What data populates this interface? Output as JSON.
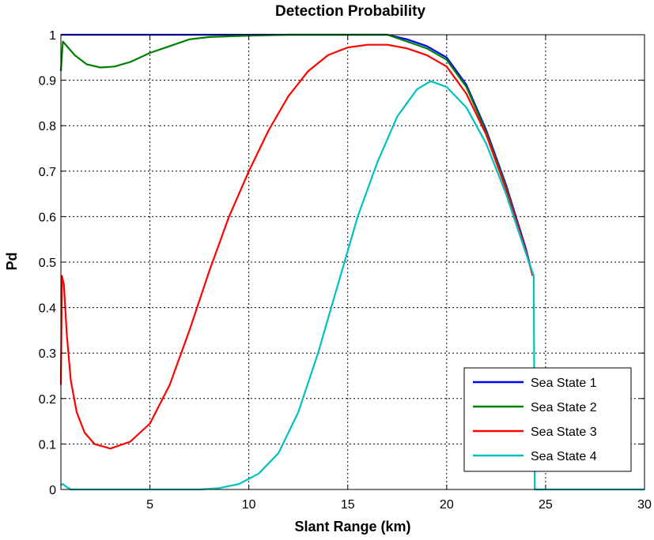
{
  "chart_data": {
    "type": "line",
    "title": "Detection Probability",
    "xlabel": "Slant Range (km)",
    "ylabel": "Pd",
    "xlim": [
      0.5,
      30
    ],
    "ylim": [
      0,
      1
    ],
    "xticks": [
      5,
      10,
      15,
      20,
      25,
      30
    ],
    "yticks": [
      0,
      0.1,
      0.2,
      0.3,
      0.4,
      0.5,
      0.6,
      0.7,
      0.8,
      0.9,
      1
    ],
    "ytick_labels": [
      "0",
      "0.1",
      "0.2",
      "0.3",
      "0.4",
      "0.5",
      "0.6",
      "0.7",
      "0.8",
      "0.9",
      "1"
    ],
    "grid": true,
    "legend_position": "bottom-right",
    "series": [
      {
        "name": "Sea State 1",
        "color": "#0000ff",
        "points": [
          [
            0.5,
            1.0
          ],
          [
            17,
            1.0
          ],
          [
            18,
            0.99
          ],
          [
            19,
            0.975
          ],
          [
            20,
            0.95
          ],
          [
            21,
            0.89
          ],
          [
            22,
            0.79
          ],
          [
            23,
            0.67
          ],
          [
            24,
            0.53
          ],
          [
            24.35,
            0.47
          ]
        ]
      },
      {
        "name": "Sea State 2",
        "color": "#008000",
        "points": [
          [
            0.5,
            0.92
          ],
          [
            0.6,
            0.985
          ],
          [
            0.8,
            0.975
          ],
          [
            1.2,
            0.955
          ],
          [
            1.8,
            0.935
          ],
          [
            2.5,
            0.928
          ],
          [
            3.2,
            0.93
          ],
          [
            4,
            0.94
          ],
          [
            5,
            0.96
          ],
          [
            6,
            0.975
          ],
          [
            7,
            0.99
          ],
          [
            8,
            0.995
          ],
          [
            10,
            0.998
          ],
          [
            12,
            1.0
          ],
          [
            17,
            1.0
          ],
          [
            18,
            0.985
          ],
          [
            19,
            0.97
          ],
          [
            20,
            0.945
          ],
          [
            21,
            0.885
          ],
          [
            22,
            0.785
          ],
          [
            23,
            0.665
          ],
          [
            24,
            0.525
          ],
          [
            24.35,
            0.47
          ]
        ]
      },
      {
        "name": "Sea State 3",
        "color": "#ff0000",
        "points": [
          [
            0.5,
            0.23
          ],
          [
            0.55,
            0.47
          ],
          [
            0.65,
            0.45
          ],
          [
            0.8,
            0.34
          ],
          [
            1.0,
            0.24
          ],
          [
            1.3,
            0.17
          ],
          [
            1.7,
            0.125
          ],
          [
            2.2,
            0.1
          ],
          [
            3,
            0.09
          ],
          [
            4,
            0.105
          ],
          [
            5,
            0.145
          ],
          [
            6,
            0.23
          ],
          [
            7,
            0.35
          ],
          [
            8,
            0.48
          ],
          [
            9,
            0.6
          ],
          [
            10,
            0.7
          ],
          [
            11,
            0.79
          ],
          [
            12,
            0.865
          ],
          [
            13,
            0.92
          ],
          [
            14,
            0.955
          ],
          [
            15,
            0.972
          ],
          [
            16,
            0.978
          ],
          [
            17,
            0.978
          ],
          [
            18,
            0.97
          ],
          [
            19,
            0.955
          ],
          [
            20,
            0.93
          ],
          [
            21,
            0.87
          ],
          [
            22,
            0.78
          ],
          [
            23,
            0.66
          ],
          [
            24,
            0.525
          ],
          [
            24.35,
            0.47
          ]
        ]
      },
      {
        "name": "Sea State 4",
        "color": "#00c0c0",
        "points": [
          [
            0.5,
            0.01
          ],
          [
            0.6,
            0.012
          ],
          [
            0.8,
            0.005
          ],
          [
            1.0,
            0.0
          ],
          [
            7.5,
            0.0
          ],
          [
            8.5,
            0.003
          ],
          [
            9.5,
            0.012
          ],
          [
            10.5,
            0.035
          ],
          [
            11.5,
            0.08
          ],
          [
            12.5,
            0.17
          ],
          [
            13.5,
            0.3
          ],
          [
            14.5,
            0.45
          ],
          [
            15.5,
            0.6
          ],
          [
            16.5,
            0.72
          ],
          [
            17.5,
            0.82
          ],
          [
            18.5,
            0.88
          ],
          [
            19.2,
            0.898
          ],
          [
            20,
            0.885
          ],
          [
            21,
            0.84
          ],
          [
            22,
            0.76
          ],
          [
            23,
            0.65
          ],
          [
            24,
            0.52
          ],
          [
            24.4,
            0.47
          ],
          [
            24.45,
            0.0
          ],
          [
            30,
            0.0
          ]
        ]
      }
    ]
  }
}
